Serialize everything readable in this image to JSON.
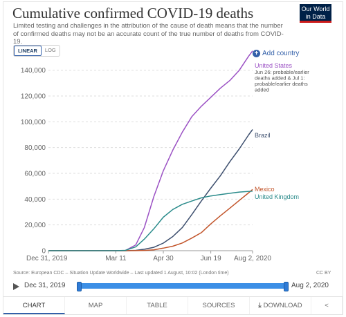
{
  "header": {
    "title": "Cumulative confirmed COVID-19 deaths",
    "subtitle": "Limited testing and challenges in the attribution of the cause of death means that the number of confirmed deaths may not be an accurate count of the true number of deaths from COVID-19.",
    "logo_line1": "Our World",
    "logo_line2": "in Data"
  },
  "controls": {
    "linear_label": "LINEAR",
    "log_label": "LOG",
    "add_country_label": "Add country",
    "add_country_icon": "plus-circle-icon"
  },
  "chart_data": {
    "type": "line",
    "title": "Cumulative confirmed COVID-19 deaths",
    "xlabel": "",
    "ylabel": "",
    "ylim": [
      0,
      150000
    ],
    "yticks": [
      0,
      20000,
      40000,
      60000,
      80000,
      100000,
      120000,
      140000
    ],
    "ytick_labels": [
      "0",
      "20,000",
      "40,000",
      "60,000",
      "80,000",
      "100,000",
      "120,000",
      "140,000"
    ],
    "xticks": [
      "Dec 31, 2019",
      "Mar 11",
      "Apr 30",
      "Jun 19",
      "Aug 2, 2020"
    ],
    "x": [
      "2019-12-31",
      "2020-03-11",
      "2020-03-21",
      "2020-04-01",
      "2020-04-10",
      "2020-04-20",
      "2020-04-30",
      "2020-05-10",
      "2020-05-20",
      "2020-05-30",
      "2020-06-09",
      "2020-06-19",
      "2020-06-29",
      "2020-07-09",
      "2020-07-19",
      "2020-07-29",
      "2020-08-02"
    ],
    "grid": true,
    "series": [
      {
        "name": "United States",
        "color": "#9b51c4",
        "values": [
          0,
          0,
          100,
          4500,
          18000,
          42000,
          62000,
          78000,
          92000,
          104000,
          112000,
          119000,
          126000,
          132000,
          140000,
          151000,
          155000
        ],
        "annotation": "Jun 26: probable/earlier deaths added & Jul 1: probable/earlier deaths added"
      },
      {
        "name": "Brazil",
        "color": "#3d4f6e",
        "values": [
          0,
          0,
          0,
          250,
          1100,
          2600,
          5900,
          11000,
          18000,
          28000,
          38500,
          48500,
          58000,
          69000,
          79000,
          90000,
          94000
        ]
      },
      {
        "name": "Mexico",
        "color": "#c2542a",
        "values": [
          0,
          0,
          0,
          30,
          230,
          700,
          2000,
          3500,
          6000,
          9800,
          14000,
          20800,
          27000,
          33000,
          39000,
          45000,
          47500
        ]
      },
      {
        "name": "United Kingdom",
        "color": "#2a8b8b",
        "values": [
          0,
          0,
          250,
          3000,
          9000,
          17000,
          26000,
          32000,
          36000,
          38500,
          41000,
          42500,
          43500,
          44500,
          45500,
          46000,
          46200
        ]
      }
    ]
  },
  "footer": {
    "source": "Source: European CDC – Situation Update Worldwide – Last updated 1 August, 10:02 (London time)",
    "license": "CC BY"
  },
  "timeline": {
    "start": "Dec 31, 2019",
    "end": "Aug 2, 2020",
    "play_icon": "play-icon"
  },
  "tabs": {
    "chart": "CHART",
    "map": "MAP",
    "table": "TABLE",
    "sources": "SOURCES",
    "download": "DOWNLOAD",
    "share_icon": "share-icon",
    "download_icon": "download-icon"
  }
}
